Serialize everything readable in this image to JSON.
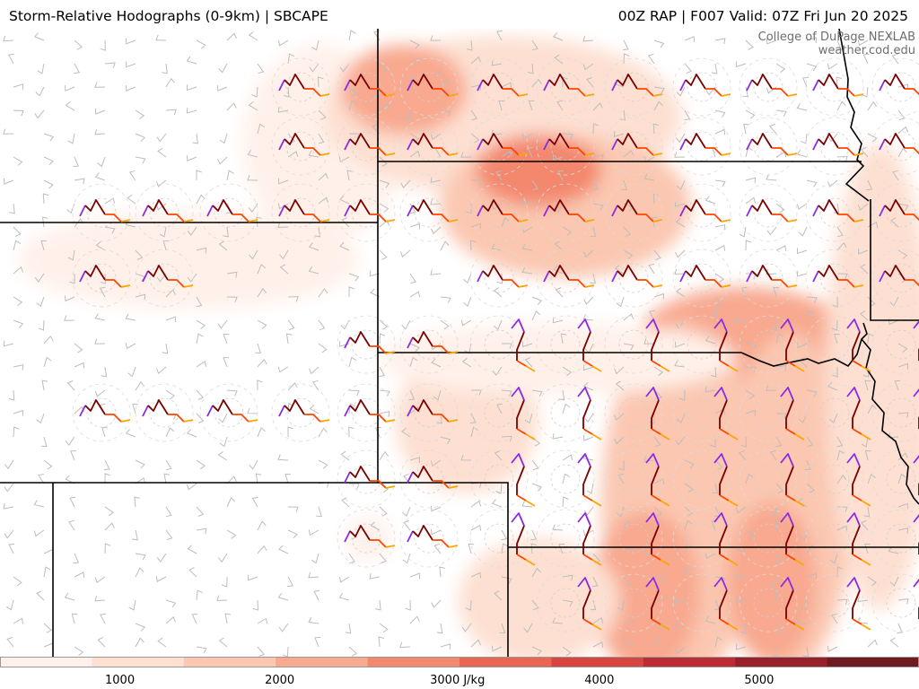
{
  "header": {
    "left_title": "Storm-Relative Hodographs (0-9km) | SBCAPE",
    "right_title": "00Z RAP | F007 Valid: 07Z Fri Jun 20 2025"
  },
  "credit": {
    "line1": "College of DuPage NEXLAB",
    "line2": "weather.cod.edu"
  },
  "colorbar": {
    "unit": "J/kg",
    "ticks": [
      {
        "label": "1000",
        "value": 1000
      },
      {
        "label": "2000",
        "value": 2000
      },
      {
        "label": "3000 J/kg",
        "value": 3000
      },
      {
        "label": "4000",
        "value": 4000
      },
      {
        "label": "5000",
        "value": 5000
      }
    ],
    "range": [
      250,
      6000
    ],
    "colors": [
      "#fff1ea",
      "#fde0d2",
      "#fbc7b1",
      "#f8a98f",
      "#f3886e",
      "#ea6552",
      "#d84540",
      "#bc2c35",
      "#98202a",
      "#701a22"
    ]
  },
  "legend_colors": {
    "hodo_0_1km": "#8b2be2",
    "hodo_1_3km": "#7a0000",
    "hodo_3_6km": "#ff4500",
    "hodo_6_9km": "#ffa500",
    "borders": "#000000",
    "barbs": "#b9b9b9"
  }
}
